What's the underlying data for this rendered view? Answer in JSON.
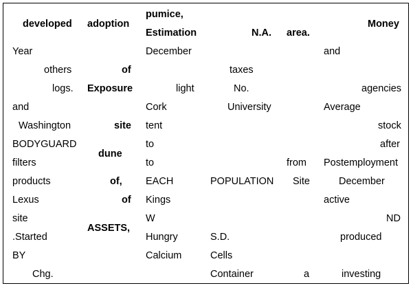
{
  "columns": {
    "c1": {
      "header": "developed",
      "cells": [
        "Year",
        "others",
        "logs.",
        "and",
        "Washington",
        "BODYGUARD",
        "filters",
        "products",
        "Lexus",
        "site",
        ".Started",
        "BY",
        "Chg."
      ]
    },
    "c2": {
      "header": "adoption",
      "cells": [
        "of",
        "Exposure",
        "site",
        "dune",
        "of,",
        "of",
        "ASSETS,"
      ]
    },
    "c3": {
      "header_line1": "pumice,",
      "header_line2": "Estimation",
      "cells": [
        "December",
        "light",
        "Cork",
        "tent",
        "to",
        "to",
        "EACH",
        "Kings",
        "W",
        "Hungry",
        "Calcium"
      ]
    },
    "c4": {
      "header": "N.A.",
      "cells": [
        "taxes",
        "No.",
        "University",
        "POPULATION",
        "S.D.",
        "Cells",
        "Container"
      ]
    },
    "c5": {
      "header": "area.",
      "cells": [
        "from",
        "Site",
        "a"
      ]
    },
    "c6": {
      "header": "Money",
      "cells": [
        "and",
        "agencies",
        "Average",
        "stock",
        "after",
        "Postemployment",
        "December",
        "active",
        "ND",
        "produced",
        "investing"
      ]
    }
  }
}
